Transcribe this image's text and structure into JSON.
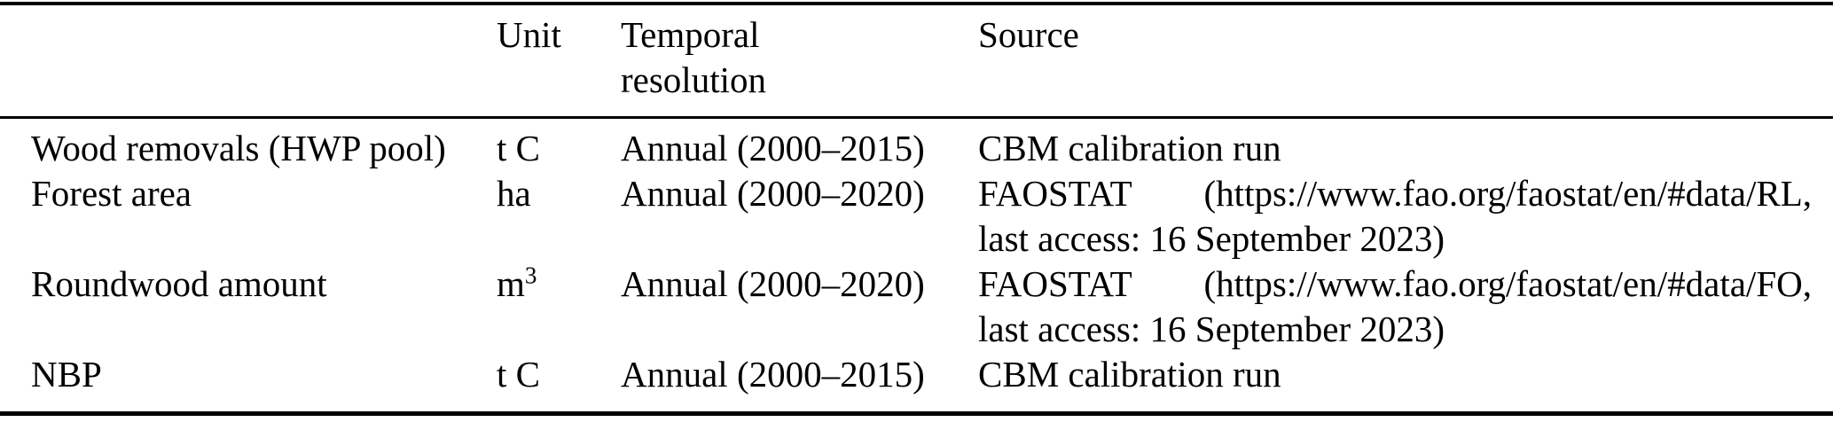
{
  "table": {
    "colors": {
      "text": "#000000",
      "background": "#ffffff",
      "rule": "#000000"
    },
    "columns": {
      "variable": "",
      "unit": "Unit",
      "temporal": "Temporal resolution",
      "source": "Source"
    },
    "rows": [
      {
        "variable": "Wood removals (HWP pool)",
        "unit": "t C",
        "temporal": "Annual (2000–2015)",
        "source_line1_left": "CBM calibration run"
      },
      {
        "variable": "Forest area",
        "unit": "ha",
        "temporal": "Annual (2000–2020)",
        "source_line1_left": "FAOSTAT",
        "source_line1_right": "(https://www.fao.org/faostat/en/#data/RL,",
        "source_line2": "last access: 16 September 2023)"
      },
      {
        "variable": "Roundwood amount",
        "unit": "m",
        "unit_superscript": "3",
        "temporal": "Annual (2000–2020)",
        "source_line1_left": "FAOSTAT",
        "source_line1_right": "(https://www.fao.org/faostat/en/#data/FO,",
        "source_line2": "last access: 16 September 2023)"
      },
      {
        "variable": "NBP",
        "unit": "t C",
        "temporal": "Annual (2000–2015)",
        "source_line1_left": "CBM calibration run"
      }
    ]
  }
}
